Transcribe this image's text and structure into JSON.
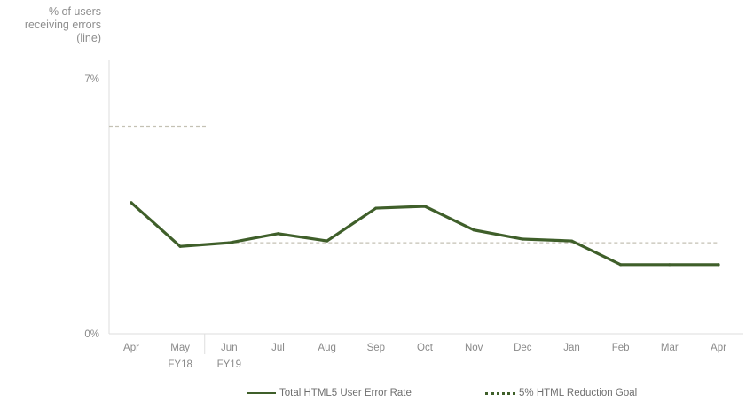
{
  "y_axis_title": [
    "% of users",
    "receiving errors",
    "(line)"
  ],
  "fiscal_labels": [
    {
      "text": "FY18",
      "after_index": 1
    },
    {
      "text": "FY19",
      "after_index": 2
    }
  ],
  "legend": {
    "series_label": "Total HTML5 User Error Rate",
    "goal_label": "5% HTML Reduction Goal"
  },
  "colors": {
    "series": "#3f5f2a",
    "goal": "#c4c1b4",
    "axis": "#dedede"
  },
  "chart_data": {
    "type": "line",
    "categories": [
      "Apr",
      "May",
      "Jun",
      "Jul",
      "Aug",
      "Sep",
      "Oct",
      "Nov",
      "Dec",
      "Jan",
      "Feb",
      "Mar",
      "Apr"
    ],
    "series": [
      {
        "name": "Total HTML5 User Error Rate",
        "values": [
          3.6,
          2.4,
          2.5,
          2.75,
          2.55,
          3.45,
          3.5,
          2.85,
          2.6,
          2.55,
          1.9,
          1.9,
          1.9
        ]
      }
    ],
    "goal_lines": [
      {
        "name": "5% HTML Reduction Goal",
        "value": 5.7,
        "from_index": 0,
        "to_index": 1
      },
      {
        "name": "5% HTML Reduction Goal",
        "value": 2.5,
        "from_index": 2,
        "to_index": 12
      }
    ],
    "y_ticks": [
      "0%",
      "7%"
    ],
    "ylim": [
      0,
      7
    ],
    "fiscal_split_after_index": 1,
    "ylabel": "% of users receiving errors (line)",
    "xlabel": "",
    "title": "",
    "grid": false,
    "legend_position": "bottom"
  }
}
